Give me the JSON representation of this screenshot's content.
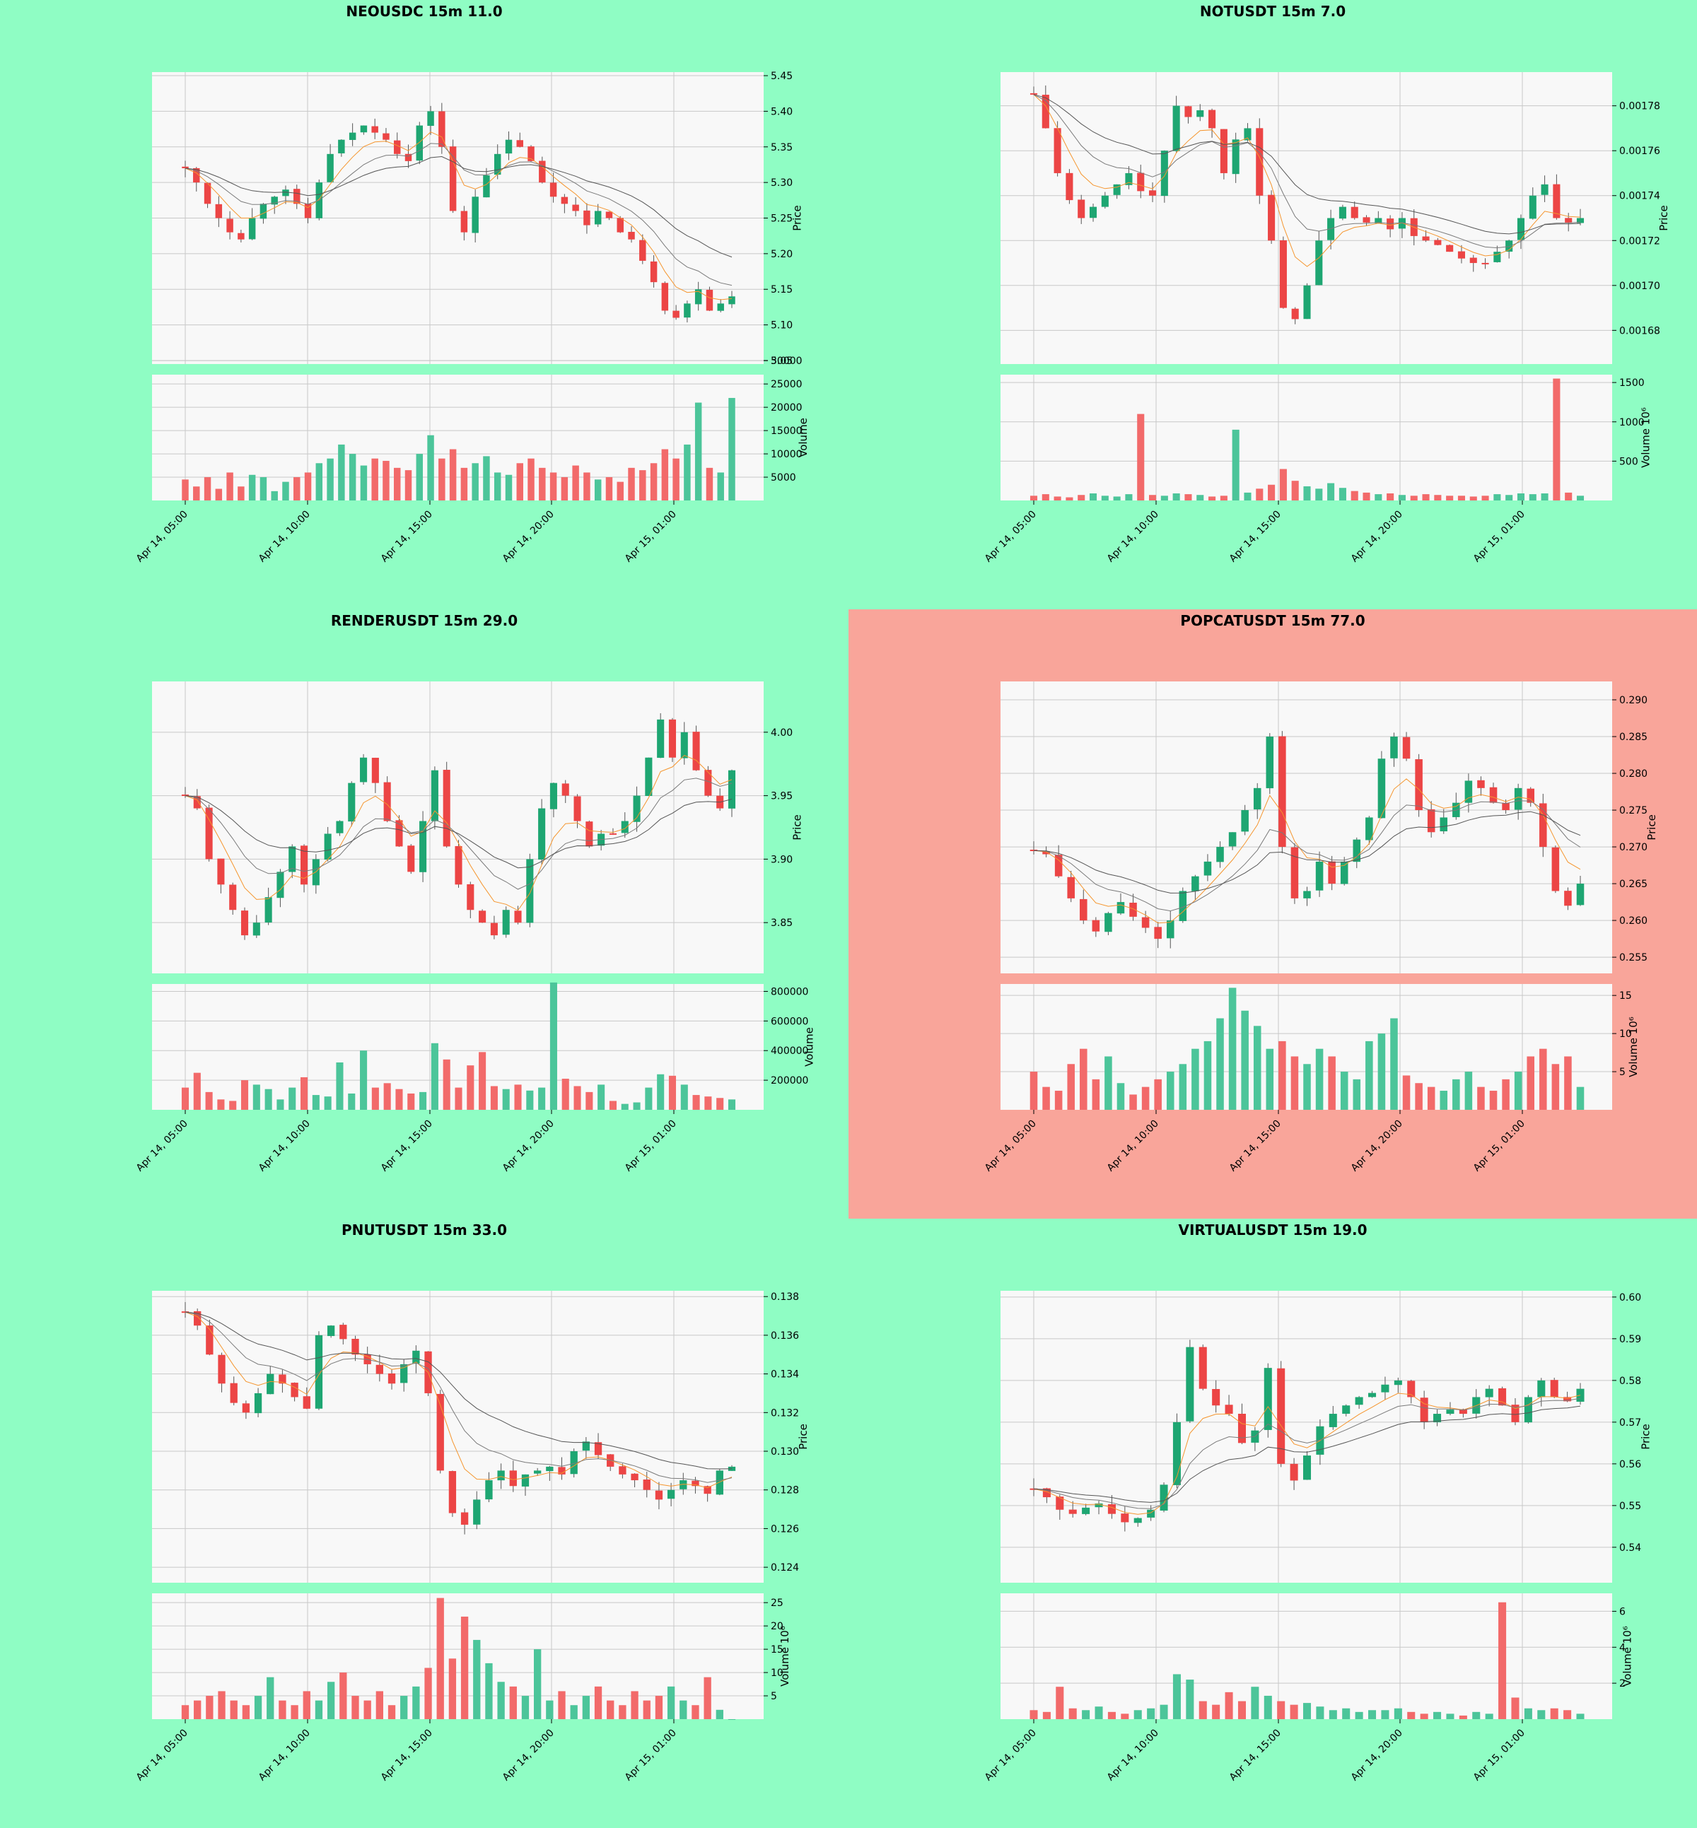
{
  "colors": {
    "page_bg": "#8ffdc4",
    "highlight_bg": "#f9a59a",
    "plot_bg": "#f8f8f8",
    "grid": "#c8c8c8",
    "up": "#1ea672",
    "down": "#ec4545",
    "vol_up": "#4cc59a",
    "vol_down": "#f26a6a",
    "ma_fast": "#f5952e",
    "ma_mid": "#7a7a7a",
    "ma_slow": "#555555"
  },
  "chart_data": [
    {
      "type": "candlestick",
      "title": "NEOUSDC 15m 11.0",
      "highlighted": false,
      "ylabel": "Price",
      "volume_label": "Volume",
      "y_ticks": [
        "5.05",
        "5.10",
        "5.15",
        "5.20",
        "5.25",
        "5.30",
        "5.35",
        "5.40",
        "5.45"
      ],
      "ylim": [
        5.045,
        5.455
      ],
      "volume_ticks": [
        "5000",
        "10000",
        "15000",
        "20000",
        "25000",
        "30000"
      ],
      "volume_lim": [
        0,
        27000
      ],
      "x_ticks": [
        "Apr 14, 05:00",
        "Apr 14, 10:00",
        "Apr 14, 15:00",
        "Apr 14, 20:00",
        "Apr 15, 01:00"
      ],
      "price_path": [
        5.32,
        5.3,
        5.27,
        5.25,
        5.23,
        5.22,
        5.25,
        5.27,
        5.28,
        5.29,
        5.27,
        5.25,
        5.3,
        5.34,
        5.36,
        5.37,
        5.38,
        5.37,
        5.36,
        5.34,
        5.33,
        5.38,
        5.4,
        5.35,
        5.26,
        5.23,
        5.28,
        5.31,
        5.34,
        5.36,
        5.35,
        5.33,
        5.3,
        5.28,
        5.27,
        5.26,
        5.24,
        5.26,
        5.25,
        5.23,
        5.22,
        5.19,
        5.16,
        5.12,
        5.11,
        5.13,
        5.15,
        5.12,
        5.13,
        5.14
      ],
      "volumes": [
        4500,
        3000,
        5000,
        2500,
        6000,
        3000,
        5500,
        5000,
        2000,
        4000,
        5000,
        6000,
        8000,
        9000,
        12000,
        10000,
        7500,
        9000,
        8500,
        7000,
        6500,
        10000,
        14000,
        9000,
        11000,
        7000,
        8000,
        9500,
        6000,
        5500,
        8000,
        9000,
        7000,
        6000,
        5000,
        7500,
        6000,
        4500,
        5000,
        4000,
        7000,
        6500,
        8000,
        11000,
        9000,
        12000,
        21000,
        7000,
        6000,
        22000
      ]
    },
    {
      "type": "candlestick",
      "title": "NOTUSDT 15m 7.0",
      "highlighted": false,
      "ylabel": "Price",
      "volume_label": "Volume  10⁶",
      "y_ticks": [
        "0.00168",
        "0.00170",
        "0.00172",
        "0.00174",
        "0.00176",
        "0.00178"
      ],
      "ylim": [
        0.001665,
        0.001795
      ],
      "volume_ticks": [
        "500",
        "1000",
        "1500"
      ],
      "volume_lim": [
        0,
        1600
      ],
      "x_ticks": [
        "Apr 14, 05:00",
        "Apr 14, 10:00",
        "Apr 14, 15:00",
        "Apr 14, 20:00",
        "Apr 15, 01:00"
      ],
      "price_path": [
        0.001785,
        0.00177,
        0.00175,
        0.001738,
        0.00173,
        0.001735,
        0.00174,
        0.001745,
        0.00175,
        0.001742,
        0.00174,
        0.00176,
        0.00178,
        0.001775,
        0.001778,
        0.00177,
        0.00175,
        0.001765,
        0.00177,
        0.00174,
        0.00172,
        0.00169,
        0.001685,
        0.0017,
        0.00172,
        0.00173,
        0.001735,
        0.00173,
        0.001728,
        0.00173,
        0.001725,
        0.00173,
        0.001722,
        0.00172,
        0.001718,
        0.001715,
        0.001712,
        0.00171,
        0.00171,
        0.001715,
        0.00172,
        0.00173,
        0.00174,
        0.001745,
        0.00173,
        0.001728,
        0.00173
      ],
      "volumes": [
        60,
        80,
        50,
        40,
        70,
        90,
        60,
        50,
        80,
        1100,
        70,
        60,
        90,
        80,
        70,
        50,
        60,
        900,
        100,
        150,
        200,
        400,
        250,
        180,
        150,
        220,
        160,
        120,
        100,
        80,
        90,
        70,
        60,
        80,
        70,
        60,
        60,
        50,
        60,
        80,
        70,
        90,
        80,
        90,
        1550,
        100,
        60
      ]
    },
    {
      "type": "candlestick",
      "title": "RENDERUSDT 15m 29.0",
      "highlighted": false,
      "ylabel": "Price",
      "volume_label": "Volume",
      "y_ticks": [
        "3.85",
        "3.90",
        "3.95",
        "4.00"
      ],
      "ylim": [
        3.81,
        4.04
      ],
      "volume_ticks": [
        "200000",
        "400000",
        "600000",
        "800000"
      ],
      "volume_lim": [
        0,
        850000
      ],
      "x_ticks": [
        "Apr 14, 05:00",
        "Apr 14, 10:00",
        "Apr 14, 15:00",
        "Apr 14, 20:00",
        "Apr 15, 01:00"
      ],
      "price_path": [
        3.95,
        3.94,
        3.9,
        3.88,
        3.86,
        3.84,
        3.85,
        3.87,
        3.89,
        3.91,
        3.88,
        3.9,
        3.92,
        3.93,
        3.96,
        3.98,
        3.96,
        3.93,
        3.91,
        3.89,
        3.93,
        3.97,
        3.91,
        3.88,
        3.86,
        3.85,
        3.84,
        3.86,
        3.85,
        3.9,
        3.94,
        3.96,
        3.95,
        3.93,
        3.91,
        3.92,
        3.92,
        3.93,
        3.95,
        3.98,
        4.01,
        3.98,
        4.0,
        3.97,
        3.95,
        3.94,
        3.97
      ],
      "volumes": [
        150000,
        250000,
        120000,
        70000,
        60000,
        200000,
        170000,
        140000,
        70000,
        150000,
        220000,
        100000,
        90000,
        320000,
        110000,
        400000,
        150000,
        180000,
        140000,
        110000,
        120000,
        450000,
        340000,
        150000,
        300000,
        390000,
        160000,
        140000,
        170000,
        130000,
        150000,
        860000,
        210000,
        160000,
        120000,
        170000,
        60000,
        40000,
        50000,
        150000,
        240000,
        230000,
        170000,
        100000,
        90000,
        80000,
        70000
      ]
    },
    {
      "type": "candlestick",
      "title": "POPCATUSDT 15m 77.0",
      "highlighted": true,
      "ylabel": "Price",
      "volume_label": "Volume  10⁶",
      "y_ticks": [
        "0.255",
        "0.260",
        "0.265",
        "0.270",
        "0.275",
        "0.280",
        "0.285",
        "0.290"
      ],
      "ylim": [
        0.2528,
        0.2925
      ],
      "volume_ticks": [
        "5",
        "10",
        "15"
      ],
      "volume_lim": [
        0,
        16.5
      ],
      "x_ticks": [
        "Apr 14, 05:00",
        "Apr 14, 10:00",
        "Apr 14, 15:00",
        "Apr 14, 20:00",
        "Apr 15, 01:00"
      ],
      "price_path": [
        0.2695,
        0.269,
        0.266,
        0.263,
        0.26,
        0.2585,
        0.261,
        0.2625,
        0.2605,
        0.259,
        0.2575,
        0.26,
        0.264,
        0.266,
        0.268,
        0.27,
        0.272,
        0.275,
        0.278,
        0.285,
        0.27,
        0.263,
        0.264,
        0.268,
        0.265,
        0.268,
        0.271,
        0.274,
        0.282,
        0.285,
        0.282,
        0.275,
        0.272,
        0.274,
        0.276,
        0.279,
        0.278,
        0.276,
        0.275,
        0.278,
        0.276,
        0.27,
        0.264,
        0.262,
        0.265
      ],
      "volumes": [
        5,
        3,
        2.5,
        6,
        8,
        4,
        7,
        3.5,
        2,
        3,
        4,
        5,
        6,
        8,
        9,
        12,
        16,
        13,
        11,
        8,
        9,
        7,
        6,
        8,
        7,
        5,
        4,
        9,
        10,
        12,
        4.5,
        3.5,
        3,
        2.5,
        4,
        5,
        3,
        2.5,
        4,
        5,
        7,
        8,
        6,
        7,
        3
      ]
    },
    {
      "type": "candlestick",
      "title": "PNUTUSDT 15m 33.0",
      "highlighted": false,
      "ylabel": "Price",
      "volume_label": "Volume  10⁶",
      "y_ticks": [
        "0.124",
        "0.126",
        "0.128",
        "0.130",
        "0.132",
        "0.134",
        "0.136",
        "0.138"
      ],
      "ylim": [
        0.1232,
        0.1383
      ],
      "volume_ticks": [
        "5",
        "10",
        "15",
        "20",
        "25"
      ],
      "volume_lim": [
        0,
        27
      ],
      "x_ticks": [
        "Apr 14, 05:00",
        "Apr 14, 10:00",
        "Apr 14, 15:00",
        "Apr 14, 20:00",
        "Apr 15, 01:00"
      ],
      "price_path": [
        0.1372,
        0.1365,
        0.135,
        0.1335,
        0.1325,
        0.132,
        0.133,
        0.134,
        0.1335,
        0.1328,
        0.1322,
        0.136,
        0.1365,
        0.1358,
        0.135,
        0.1345,
        0.134,
        0.1335,
        0.1345,
        0.1352,
        0.133,
        0.129,
        0.1268,
        0.1262,
        0.1275,
        0.1285,
        0.129,
        0.1282,
        0.1288,
        0.129,
        0.1292,
        0.1288,
        0.13,
        0.1305,
        0.1298,
        0.1292,
        0.1288,
        0.1285,
        0.128,
        0.1275,
        0.128,
        0.1285,
        0.1282,
        0.1278,
        0.129,
        0.1292
      ],
      "volumes": [
        3,
        4,
        5,
        6,
        4,
        3,
        5,
        9,
        4,
        3,
        6,
        4,
        8,
        10,
        5,
        4,
        6,
        3,
        5,
        7,
        11,
        26,
        13,
        22,
        17,
        12,
        8,
        7,
        5,
        15,
        4,
        6,
        3,
        5,
        7,
        4,
        3,
        6,
        4,
        5,
        7,
        4,
        3,
        9,
        2
      ]
    },
    {
      "type": "candlestick",
      "title": "VIRTUALUSDT 15m 19.0",
      "highlighted": false,
      "ylabel": "Price",
      "volume_label": "Volume  10⁶",
      "y_ticks": [
        "0.54",
        "0.55",
        "0.56",
        "0.57",
        "0.58",
        "0.59",
        "0.60"
      ],
      "ylim": [
        0.5315,
        0.6015
      ],
      "volume_ticks": [
        "2",
        "4",
        "6"
      ],
      "volume_lim": [
        0,
        7
      ],
      "x_ticks": [
        "Apr 14, 05:00",
        "Apr 14, 10:00",
        "Apr 14, 15:00",
        "Apr 14, 20:00",
        "Apr 15, 01:00"
      ],
      "price_path": [
        0.554,
        0.552,
        0.549,
        0.548,
        0.5495,
        0.5505,
        0.548,
        0.546,
        0.547,
        0.549,
        0.555,
        0.57,
        0.588,
        0.578,
        0.574,
        0.572,
        0.565,
        0.568,
        0.583,
        0.56,
        0.556,
        0.562,
        0.569,
        0.572,
        0.574,
        0.576,
        0.577,
        0.579,
        0.58,
        0.576,
        0.57,
        0.572,
        0.573,
        0.572,
        0.576,
        0.578,
        0.574,
        0.57,
        0.576,
        0.58,
        0.576,
        0.575,
        0.578
      ],
      "volumes": [
        0.5,
        0.4,
        1.8,
        0.6,
        0.5,
        0.7,
        0.4,
        0.3,
        0.5,
        0.6,
        0.8,
        2.5,
        2.2,
        1.0,
        0.8,
        1.5,
        1.0,
        1.8,
        1.3,
        1.0,
        0.8,
        0.9,
        0.7,
        0.5,
        0.6,
        0.4,
        0.5,
        0.5,
        0.6,
        0.4,
        0.3,
        0.4,
        0.3,
        0.2,
        0.4,
        0.3,
        6.5,
        1.2,
        0.6,
        0.5,
        0.6,
        0.5,
        0.3
      ]
    }
  ]
}
